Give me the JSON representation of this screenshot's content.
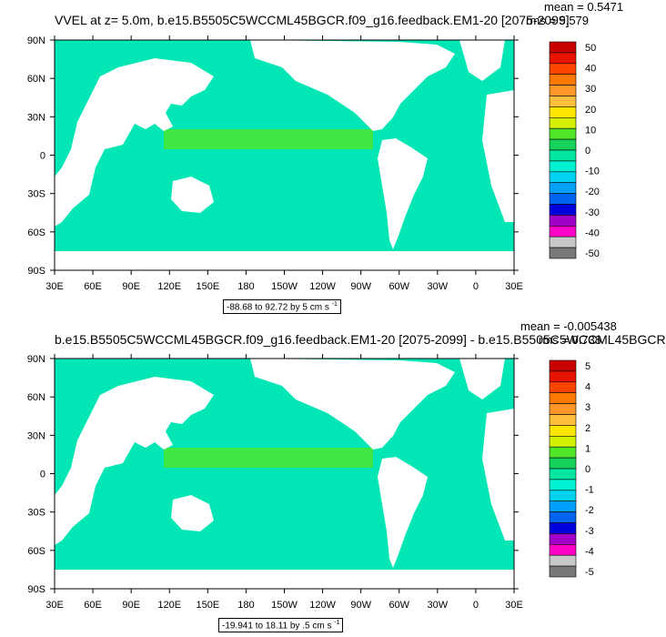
{
  "panels": [
    {
      "title": "VVEL at z=   5.0m, b.e15.B5505C5WCCML45BGCR.f09_g16.feedback.EM1-20 [2075-2099]",
      "mean": "mean = 0.5471",
      "rms": "rms = 5.579",
      "range_text": "-88.68 to 92.72 by 5 cm s",
      "range_units_exp": "-1",
      "colorbar_labels": [
        "50",
        "40",
        "30",
        "20",
        "10",
        "0",
        "-10",
        "-20",
        "-30",
        "-40",
        "-50"
      ],
      "colors": [
        "#c80000",
        "#e61400",
        "#ff4600",
        "#ff7800",
        "#ff9628",
        "#ffbe3c",
        "#ffe600",
        "#d2f000",
        "#50e628",
        "#14d25a",
        "#00e6a0",
        "#00f0d2",
        "#00d2f0",
        "#00a0ff",
        "#0064f0",
        "#0000dc",
        "#a000c8",
        "#ff00c8",
        "#c8c8c8",
        "#787878"
      ]
    },
    {
      "title": "b.e15.B5505C5WCCML45BGCR.f09_g16.feedback.EM1-20 [2075-2099] - b.e15.B5505C5WCCML45BGCR",
      "mean": "mean = -0.005438",
      "rms": "rms = 0.738",
      "range_text": "-19.941 to 18.11 by .5 cm s",
      "range_units_exp": "-1",
      "colorbar_labels": [
        "5",
        "4",
        "3",
        "2",
        "1",
        "0",
        "-1",
        "-2",
        "-3",
        "-4",
        "-5"
      ],
      "colors": [
        "#c80000",
        "#e61400",
        "#ff4600",
        "#ff7800",
        "#ff9628",
        "#ffbe3c",
        "#ffe600",
        "#d2f000",
        "#50e628",
        "#14d25a",
        "#00e6a0",
        "#00f0d2",
        "#00d2f0",
        "#00a0ff",
        "#0064f0",
        "#0000dc",
        "#a000c8",
        "#ff00c8",
        "#c8c8c8",
        "#787878"
      ]
    }
  ],
  "axes": {
    "lat_labels": [
      "90N",
      "60N",
      "30N",
      "0",
      "30S",
      "60S",
      "90S"
    ],
    "lon_labels": [
      "30E",
      "60E",
      "90E",
      "120E",
      "150E",
      "180",
      "150W",
      "120W",
      "90W",
      "60W",
      "30W",
      "0",
      "30E"
    ]
  },
  "style": {
    "ocean_color": "#00e6b4",
    "land_color": "#ffffff",
    "eq_band_color": "#50e628"
  }
}
